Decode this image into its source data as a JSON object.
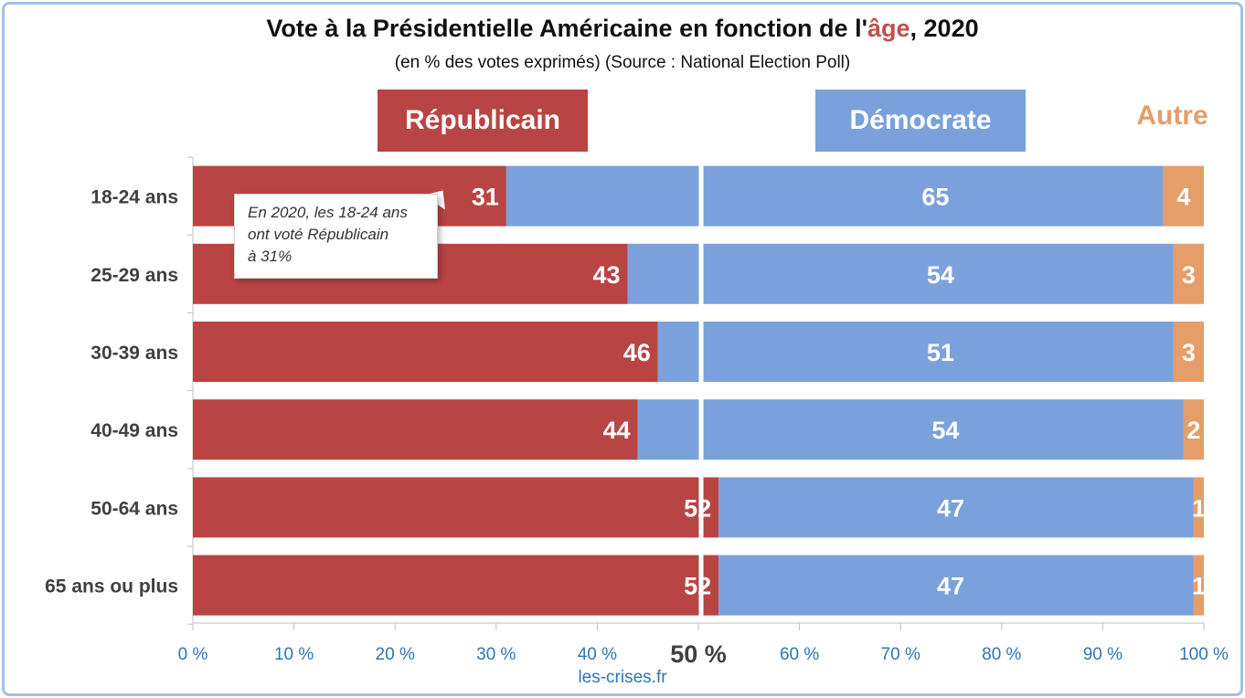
{
  "title": {
    "before": "Vote à la Présidentielle Américaine en fonction de l'",
    "accent": "âge",
    "after": ", 2020"
  },
  "subtitle": "(en % des votes exprimés) (Source : National Election Poll)",
  "legend": {
    "republican": "Républicain",
    "democrat": "Démocrate",
    "other": "Autre"
  },
  "callout": {
    "line1": "En 2020, les 18-24 ans",
    "line2": "ont voté Républicain",
    "line3": "à 31%"
  },
  "midpoint_label": "50 %",
  "source": "les-crises.fr",
  "colors": {
    "republican": "#b94444",
    "democrat": "#7ba1dc",
    "other": "#e59e69",
    "axis_labels": "#2f75b5",
    "accent": "#c0504d"
  },
  "chart_data": {
    "type": "bar",
    "stacked": true,
    "orientation": "horizontal",
    "categories": [
      "18-24 ans",
      "25-29 ans",
      "30-39 ans",
      "40-49 ans",
      "50-64 ans",
      "65 ans ou plus"
    ],
    "series": [
      {
        "name": "Républicain",
        "values": [
          31,
          43,
          46,
          44,
          52,
          52
        ]
      },
      {
        "name": "Démocrate",
        "values": [
          65,
          54,
          51,
          54,
          47,
          47
        ]
      },
      {
        "name": "Autre",
        "values": [
          4,
          3,
          3,
          2,
          1,
          1
        ]
      }
    ],
    "xlim": [
      0,
      100
    ],
    "xticks": [
      "0 %",
      "10 %",
      "20 %",
      "30 %",
      "40 %",
      "50 %",
      "60 %",
      "70 %",
      "80 %",
      "90 %",
      "100 %"
    ],
    "reference_line": 50
  }
}
